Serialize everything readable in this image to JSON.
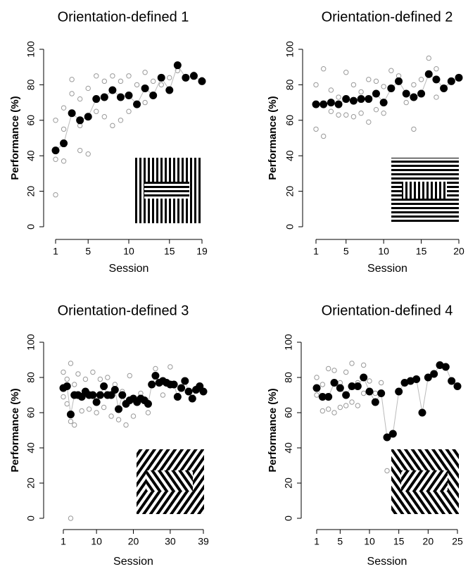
{
  "chart_data": [
    {
      "type": "scatter",
      "title": "Orientation-defined 1",
      "xlabel": "Session",
      "ylabel": "Performance (%)",
      "xlim": [
        1,
        19
      ],
      "xticks": [
        1,
        5,
        10,
        15,
        19
      ],
      "ylim": [
        0,
        100
      ],
      "yticks": [
        0,
        20,
        40,
        60,
        80,
        100
      ],
      "series": [
        {
          "color": "#9a9a9a",
          "x": [
            1,
            1,
            1,
            2,
            2,
            2,
            3,
            3,
            4,
            4,
            4,
            5,
            5,
            6,
            6,
            7,
            7,
            8,
            8,
            9,
            9,
            10,
            10,
            11,
            12,
            12,
            13,
            14,
            15,
            16,
            17,
            18,
            19
          ],
          "values": [
            60,
            38,
            18,
            67,
            37,
            55,
            83,
            75,
            72,
            57,
            43,
            78,
            41,
            85,
            65,
            82,
            62,
            85,
            57,
            82,
            60,
            85,
            65,
            80,
            87,
            70,
            82,
            80,
            84,
            88,
            84,
            86,
            83
          ]
        },
        {
          "color": "#000000",
          "x": [
            1,
            2,
            3,
            4,
            5,
            6,
            7,
            8,
            9,
            10,
            11,
            12,
            13,
            14,
            15,
            16,
            17,
            18,
            19
          ],
          "values": [
            43,
            47,
            64,
            60,
            62,
            72,
            73,
            77,
            73,
            74,
            69,
            78,
            74,
            84,
            77,
            91,
            84,
            85,
            82
          ]
        }
      ]
    },
    {
      "type": "scatter",
      "title": "Orientation-defined 2",
      "xlabel": "Session",
      "ylabel": "Performance (%)",
      "xlim": [
        1,
        20
      ],
      "xticks": [
        1,
        5,
        10,
        15,
        20
      ],
      "ylim": [
        0,
        100
      ],
      "yticks": [
        0,
        20,
        40,
        60,
        80,
        100
      ],
      "series": [
        {
          "color": "#9a9a9a",
          "x": [
            1,
            1,
            2,
            2,
            3,
            3,
            4,
            4,
            5,
            5,
            6,
            6,
            7,
            7,
            8,
            8,
            9,
            9,
            10,
            10,
            11,
            12,
            13,
            14,
            14,
            15,
            16,
            17,
            17
          ],
          "values": [
            80,
            55,
            89,
            51,
            77,
            65,
            73,
            63,
            87,
            63,
            80,
            62,
            76,
            64,
            83,
            59,
            82,
            66,
            79,
            64,
            88,
            85,
            70,
            80,
            55,
            83,
            95,
            89,
            73
          ]
        },
        {
          "color": "#000000",
          "x": [
            1,
            2,
            3,
            4,
            5,
            6,
            7,
            8,
            9,
            10,
            11,
            12,
            13,
            14,
            15,
            16,
            17,
            18,
            19,
            20
          ],
          "values": [
            69,
            69,
            70,
            69,
            72,
            71,
            72,
            72,
            75,
            70,
            78,
            82,
            75,
            73,
            75,
            86,
            83,
            78,
            82,
            84
          ]
        }
      ]
    },
    {
      "type": "scatter",
      "title": "Orientation-defined 3",
      "xlabel": "Session",
      "ylabel": "Performance (%)",
      "xlim": [
        1,
        39
      ],
      "xticks": [
        1,
        10,
        20,
        30,
        39
      ],
      "ylim": [
        0,
        100
      ],
      "yticks": [
        0,
        20,
        40,
        60,
        80,
        100
      ],
      "series": [
        {
          "color": "#9a9a9a",
          "x": [
            1,
            1,
            2,
            2,
            3,
            3,
            4,
            4,
            5,
            6,
            7,
            8,
            9,
            10,
            11,
            12,
            13,
            14,
            15,
            16,
            17,
            18,
            19,
            20,
            22,
            24,
            26,
            28,
            30,
            3
          ],
          "values": [
            83,
            69,
            79,
            65,
            88,
            55,
            76,
            53,
            82,
            61,
            79,
            62,
            83,
            60,
            79,
            63,
            80,
            58,
            76,
            56,
            72,
            53,
            81,
            58,
            71,
            60,
            85,
            70,
            86,
            0
          ]
        },
        {
          "color": "#000000",
          "x": [
            1,
            2,
            3,
            4,
            5,
            6,
            7,
            8,
            9,
            10,
            11,
            12,
            13,
            14,
            15,
            16,
            17,
            18,
            19,
            20,
            21,
            22,
            23,
            24,
            25,
            26,
            27,
            28,
            29,
            30,
            31,
            32,
            33,
            34,
            35,
            36,
            37,
            38,
            39
          ],
          "values": [
            74,
            75,
            59,
            70,
            70,
            69,
            72,
            70,
            70,
            66,
            70,
            75,
            70,
            70,
            73,
            62,
            70,
            65,
            67,
            68,
            66,
            68,
            67,
            65,
            76,
            81,
            77,
            78,
            77,
            76,
            76,
            69,
            74,
            78,
            72,
            68,
            73,
            75,
            72
          ]
        }
      ]
    },
    {
      "type": "scatter",
      "title": "Orientation-defined 4",
      "xlabel": "Session",
      "ylabel": "Performance (%)",
      "xlim": [
        1,
        25
      ],
      "xticks": [
        1,
        5,
        10,
        15,
        20,
        25
      ],
      "ylim": [
        0,
        100
      ],
      "yticks": [
        0,
        20,
        40,
        60,
        80,
        100
      ],
      "series": [
        {
          "color": "#9a9a9a",
          "x": [
            1,
            1,
            2,
            2,
            3,
            3,
            4,
            4,
            5,
            5,
            6,
            6,
            7,
            7,
            8,
            8,
            9,
            9,
            10,
            11,
            12,
            13
          ],
          "values": [
            80,
            70,
            76,
            61,
            85,
            62,
            84,
            60,
            77,
            63,
            83,
            64,
            88,
            66,
            77,
            64,
            87,
            71,
            78,
            71,
            77,
            27
          ]
        },
        {
          "color": "#000000",
          "x": [
            1,
            2,
            3,
            4,
            5,
            6,
            7,
            8,
            9,
            10,
            11,
            12,
            13,
            14,
            15,
            16,
            17,
            18,
            19,
            20,
            21,
            22,
            23,
            24,
            25
          ],
          "values": [
            74,
            69,
            69,
            77,
            74,
            70,
            75,
            75,
            80,
            72,
            66,
            71,
            46,
            48,
            72,
            77,
            78,
            79,
            60,
            80,
            82,
            87,
            86,
            78,
            75
          ]
        }
      ]
    }
  ]
}
